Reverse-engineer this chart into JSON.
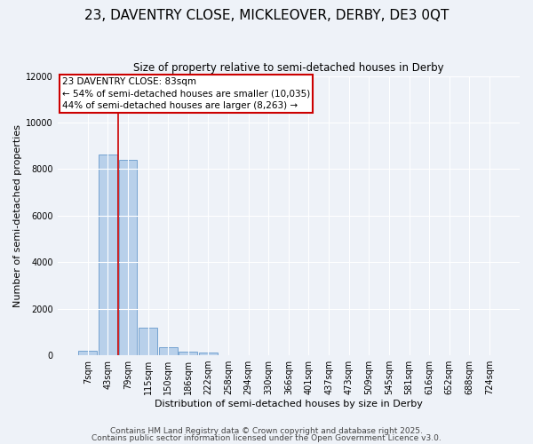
{
  "title": "23, DAVENTRY CLOSE, MICKLEOVER, DERBY, DE3 0QT",
  "subtitle": "Size of property relative to semi-detached houses in Derby",
  "xlabel": "Distribution of semi-detached houses by size in Derby",
  "ylabel": "Number of semi-detached properties",
  "categories": [
    "7sqm",
    "43sqm",
    "79sqm",
    "115sqm",
    "150sqm",
    "186sqm",
    "222sqm",
    "258sqm",
    "294sqm",
    "330sqm",
    "366sqm",
    "401sqm",
    "437sqm",
    "473sqm",
    "509sqm",
    "545sqm",
    "581sqm",
    "616sqm",
    "652sqm",
    "688sqm",
    "724sqm"
  ],
  "values": [
    200,
    8620,
    8380,
    1200,
    350,
    150,
    100,
    0,
    0,
    0,
    0,
    0,
    0,
    0,
    0,
    0,
    0,
    0,
    0,
    0,
    0
  ],
  "bar_color": "#b8d0ea",
  "bar_edge_color": "#6699cc",
  "red_line_color": "#cc0000",
  "annotation_line1": "23 DAVENTRY CLOSE: 83sqm",
  "annotation_line2": "← 54% of semi-detached houses are smaller (10,035)",
  "annotation_line3": "44% of semi-detached houses are larger (8,263) →",
  "annotation_box_color": "white",
  "annotation_border_color": "#cc0000",
  "ylim": [
    0,
    12000
  ],
  "yticks": [
    0,
    2000,
    4000,
    6000,
    8000,
    10000,
    12000
  ],
  "footnote1": "Contains HM Land Registry data © Crown copyright and database right 2025.",
  "footnote2": "Contains public sector information licensed under the Open Government Licence v3.0.",
  "background_color": "#eef2f8",
  "grid_color": "white",
  "title_fontsize": 11,
  "label_fontsize": 8,
  "tick_fontsize": 7,
  "footnote_fontsize": 6.5,
  "annotation_fontsize": 7.5
}
